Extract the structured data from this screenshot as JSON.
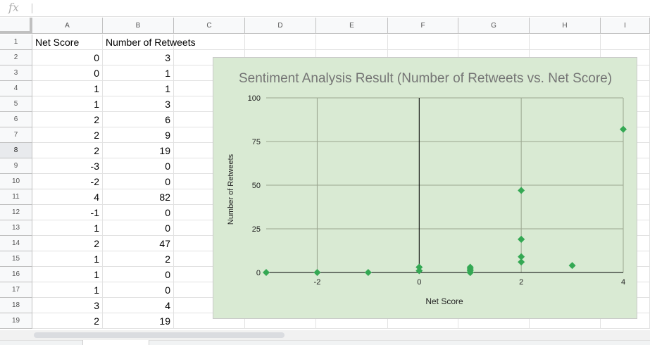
{
  "formula_bar": {
    "icon": "fx-icon",
    "label": "fx",
    "value": ""
  },
  "columns": [
    "A",
    "B",
    "C",
    "D",
    "E",
    "F",
    "G",
    "H",
    "I"
  ],
  "rows": [
    [
      "Net Score",
      "Number of Retweets"
    ],
    [
      "0",
      "3"
    ],
    [
      "0",
      "1"
    ],
    [
      "1",
      "1"
    ],
    [
      "1",
      "3"
    ],
    [
      "2",
      "6"
    ],
    [
      "2",
      "9"
    ],
    [
      "2",
      "19"
    ],
    [
      "-3",
      "0"
    ],
    [
      "-2",
      "0"
    ],
    [
      "4",
      "82"
    ],
    [
      "-1",
      "0"
    ],
    [
      "1",
      "0"
    ],
    [
      "2",
      "47"
    ],
    [
      "1",
      "2"
    ],
    [
      "1",
      "0"
    ],
    [
      "1",
      "0"
    ],
    [
      "3",
      "4"
    ],
    [
      "2",
      "19"
    ]
  ],
  "row_numbers": [
    "1",
    "2",
    "3",
    "4",
    "5",
    "6",
    "7",
    "8",
    "9",
    "10",
    "11",
    "12",
    "13",
    "14",
    "15",
    "16",
    "17",
    "18",
    "19"
  ],
  "selected_row": "8",
  "chart_data": {
    "type": "scatter",
    "title": "Sentiment Analysis Result (Number of Retweets vs. Net Score)",
    "xlabel": "Net Score",
    "ylabel": "Number of Retweets",
    "xlim": [
      -3,
      4
    ],
    "ylim": [
      0,
      100
    ],
    "xticks": [
      "-2",
      "0",
      "2",
      "4"
    ],
    "yticks": [
      "0",
      "25",
      "50",
      "75",
      "100"
    ],
    "grid": true,
    "legend": "none",
    "marker": "diamond",
    "marker_color": "#34a853",
    "background": "#d9ead3",
    "points": [
      {
        "x": 0,
        "y": 3
      },
      {
        "x": 0,
        "y": 1
      },
      {
        "x": 1,
        "y": 1
      },
      {
        "x": 1,
        "y": 3
      },
      {
        "x": 2,
        "y": 6
      },
      {
        "x": 2,
        "y": 9
      },
      {
        "x": 2,
        "y": 19
      },
      {
        "x": -3,
        "y": 0
      },
      {
        "x": -2,
        "y": 0
      },
      {
        "x": 4,
        "y": 82
      },
      {
        "x": -1,
        "y": 0
      },
      {
        "x": 1,
        "y": 0
      },
      {
        "x": 2,
        "y": 47
      },
      {
        "x": 1,
        "y": 2
      },
      {
        "x": 1,
        "y": 0
      },
      {
        "x": 1,
        "y": 0
      },
      {
        "x": 3,
        "y": 4
      },
      {
        "x": 2,
        "y": 19
      }
    ]
  }
}
